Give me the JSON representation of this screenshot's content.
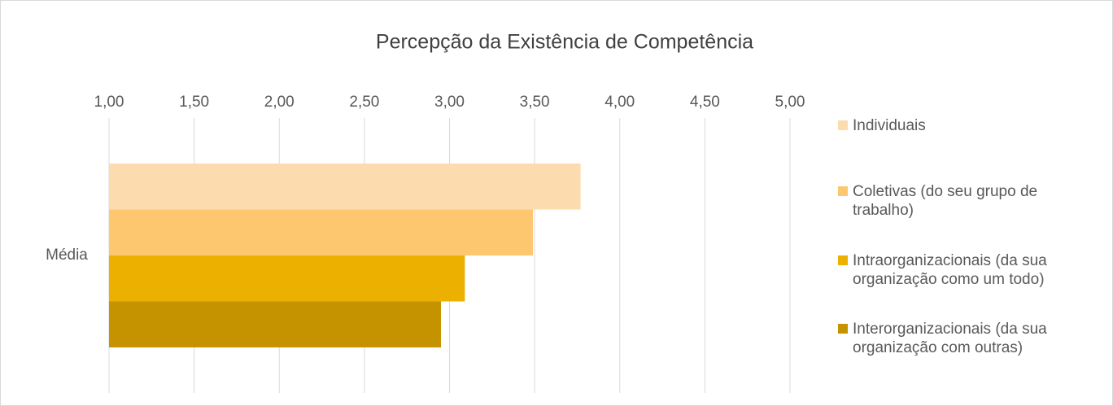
{
  "chart_data": {
    "type": "hbar",
    "title": "Percepção da Existência de Competência",
    "categories": [
      "Média"
    ],
    "series": [
      {
        "name": "Individuais",
        "color": "#fcdcae",
        "values": [
          3.77
        ]
      },
      {
        "name": "Coletivas (do seu grupo de trabalho)",
        "color": "#fcc76f",
        "values": [
          3.49
        ]
      },
      {
        "name": "Intraorganizacionais (da sua organização como um todo)",
        "color": "#ecb000",
        "values": [
          3.09
        ]
      },
      {
        "name": "Interorganizacionais (da sua organização com outras)",
        "color": "#c59300",
        "values": [
          2.95
        ]
      }
    ],
    "xlim": [
      1,
      5
    ],
    "xticks": [
      {
        "value": 1,
        "label": "1,00"
      },
      {
        "value": 1.5,
        "label": "1,50"
      },
      {
        "value": 2,
        "label": "2,00"
      },
      {
        "value": 2.5,
        "label": "2,50"
      },
      {
        "value": 3,
        "label": "3,00"
      },
      {
        "value": 3.5,
        "label": "3,50"
      },
      {
        "value": 4,
        "label": "4,00"
      },
      {
        "value": 4.5,
        "label": "4,50"
      },
      {
        "value": 5,
        "label": "5,00"
      }
    ],
    "grid": true,
    "legend": "right"
  }
}
